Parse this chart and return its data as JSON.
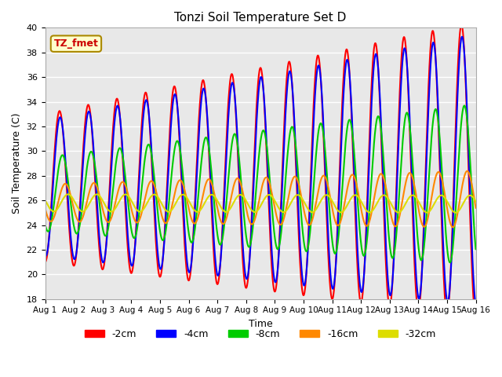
{
  "title": "Tonzi Soil Temperature Set D",
  "xlabel": "Time",
  "ylabel": "Soil Temperature (C)",
  "ylim": [
    18,
    40
  ],
  "label_box_text": "TZ_fmet",
  "legend_labels": [
    "-2cm",
    "-4cm",
    "-8cm",
    "-16cm",
    "-32cm"
  ],
  "line_colors": [
    "#ff0000",
    "#0000ff",
    "#00cc00",
    "#ff8800",
    "#dddd00"
  ],
  "line_widths": [
    1.5,
    1.5,
    1.5,
    1.5,
    1.5
  ],
  "background_color": "#ffffff",
  "plot_bg_color": "#e8e8e8",
  "grid_color": "#ffffff",
  "days": 15,
  "points_per_day": 96
}
